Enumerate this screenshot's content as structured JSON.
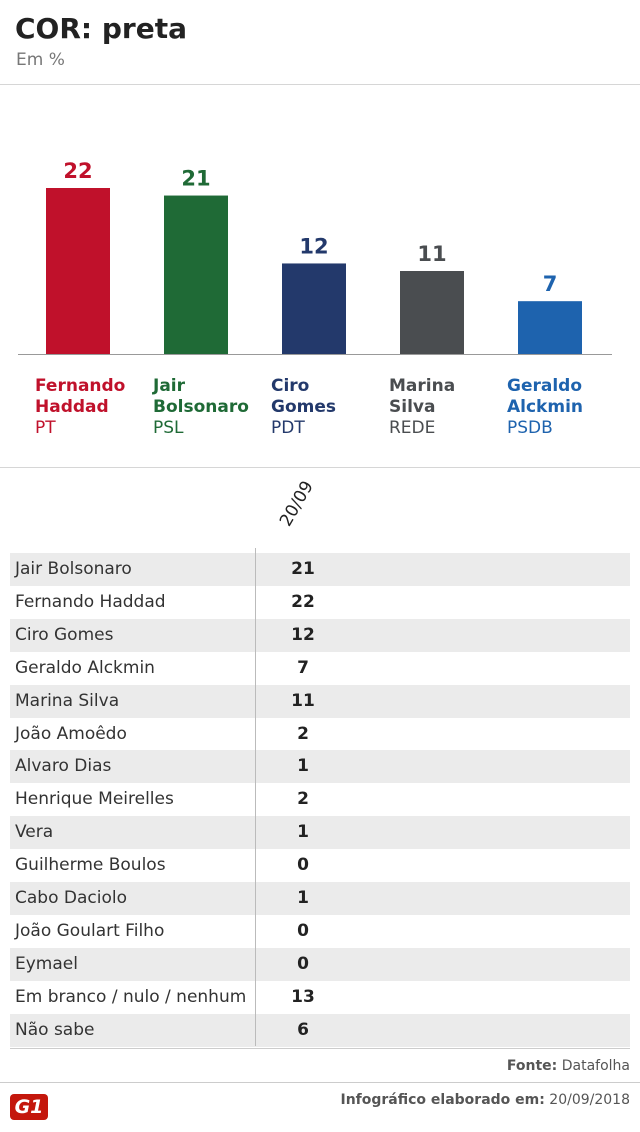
{
  "chart_data": {
    "type": "bar",
    "title": "COR: preta",
    "subtitle": "Em %",
    "categories": [
      "Fernando Haddad",
      "Jair Bolsonaro",
      "Ciro Gomes",
      "Marina Silva",
      "Geraldo Alckmin"
    ],
    "parties": [
      "PT",
      "PSL",
      "PDT",
      "REDE",
      "PSDB"
    ],
    "values": [
      22,
      21,
      12,
      11,
      7
    ],
    "colors": [
      "#c0112b",
      "#1f6a36",
      "#23396b",
      "#4a4d50",
      "#1e63ae"
    ]
  },
  "table": {
    "header": "20/09",
    "rows": [
      [
        "Jair Bolsonaro",
        21
      ],
      [
        "Fernando Haddad",
        22
      ],
      [
        "Ciro Gomes",
        12
      ],
      [
        "Geraldo Alckmin",
        7
      ],
      [
        "Marina Silva",
        11
      ],
      [
        "João Amoêdo",
        2
      ],
      [
        "Alvaro Dias",
        1
      ],
      [
        "Henrique Meirelles",
        2
      ],
      [
        "Vera",
        1
      ],
      [
        "Guilherme Boulos",
        0
      ],
      [
        "Cabo Daciolo",
        1
      ],
      [
        "João Goulart Filho",
        0
      ],
      [
        "Eymael",
        0
      ],
      [
        "Em branco / nulo / nenhum",
        13
      ],
      [
        "Não sabe",
        6
      ]
    ]
  },
  "footer": {
    "source_label": "Fonte:",
    "source": "Datafolha",
    "credit_label": "Infográfico elaborado em:",
    "date": "20/09/2018",
    "logo": "G1"
  }
}
